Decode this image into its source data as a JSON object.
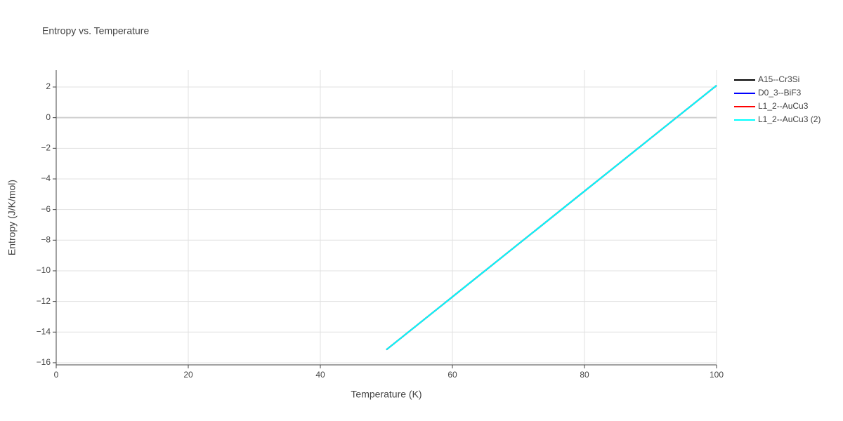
{
  "chart_data": {
    "type": "line",
    "title": "Entropy vs. Temperature",
    "x_label": "Temperature (K)",
    "y_label": "Entropy (J/K/mol)",
    "x": [
      50,
      60,
      70,
      80,
      90,
      100
    ],
    "series": [
      {
        "name": "A15--Cr3Si",
        "color": "#000000",
        "values": [
          -15.15,
          -11.7,
          -8.25,
          -4.8,
          -1.35,
          2.1
        ]
      },
      {
        "name": "D0_3--BiF3",
        "color": "#0000ff",
        "values": [
          -15.15,
          -11.7,
          -8.25,
          -4.8,
          -1.35,
          2.1
        ]
      },
      {
        "name": "L1_2--AuCu3",
        "color": "#ff0000",
        "values": [
          -15.15,
          -11.7,
          -8.25,
          -4.8,
          -1.35,
          2.1
        ]
      },
      {
        "name": "L1_2--AuCu3 (2)",
        "color": "#00ffff",
        "values": [
          -15.15,
          -11.7,
          -8.25,
          -4.8,
          -1.35,
          2.1
        ]
      }
    ],
    "xlim": [
      0,
      100
    ],
    "xticks": [
      0,
      20,
      40,
      60,
      80,
      100
    ],
    "ylim": [
      -16.14,
      3.1
    ],
    "yticks": [
      {
        "value": -16,
        "label": "−16"
      },
      {
        "value": -14,
        "label": "−14"
      },
      {
        "value": -12,
        "label": "−12"
      },
      {
        "value": -10,
        "label": "−10"
      },
      {
        "value": -8,
        "label": "−8"
      },
      {
        "value": -6,
        "label": "−6"
      },
      {
        "value": -4,
        "label": "−4"
      },
      {
        "value": -2,
        "label": "−2"
      },
      0,
      2
    ],
    "grid": true,
    "legend": "right"
  }
}
